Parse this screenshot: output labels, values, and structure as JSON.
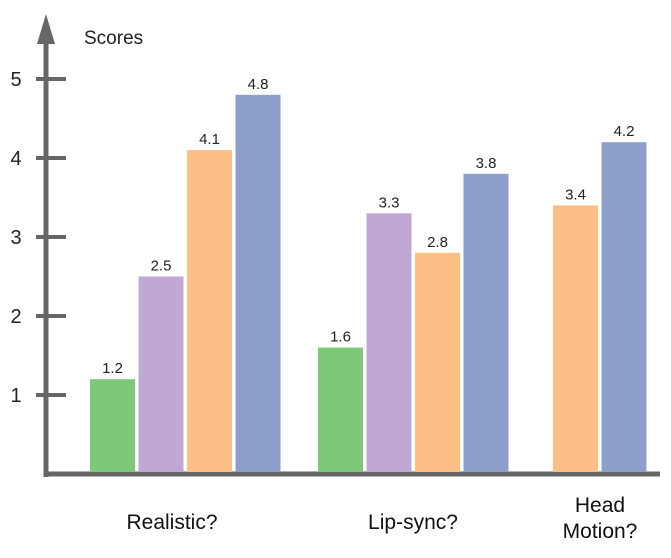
{
  "chart_data": {
    "type": "bar",
    "ylabel": "Scores",
    "yticks": [
      1,
      2,
      3,
      4,
      5
    ],
    "ylim": [
      0,
      5
    ],
    "categories": [
      {
        "label_lines": [
          "Realistic?"
        ]
      },
      {
        "label_lines": [
          "Lip-sync?"
        ]
      },
      {
        "label_lines": [
          "Head",
          "Motion?"
        ]
      }
    ],
    "series": [
      {
        "color": "#7ec87a",
        "values": [
          1.2,
          1.6,
          null
        ]
      },
      {
        "color": "#bfa8d3",
        "values": [
          2.5,
          3.3,
          null
        ]
      },
      {
        "color": "#fdbf85",
        "values": [
          4.1,
          2.8,
          3.4
        ]
      },
      {
        "color": "#8c9fcb",
        "values": [
          4.8,
          3.8,
          4.2
        ]
      }
    ],
    "axis_color": "#666666"
  }
}
